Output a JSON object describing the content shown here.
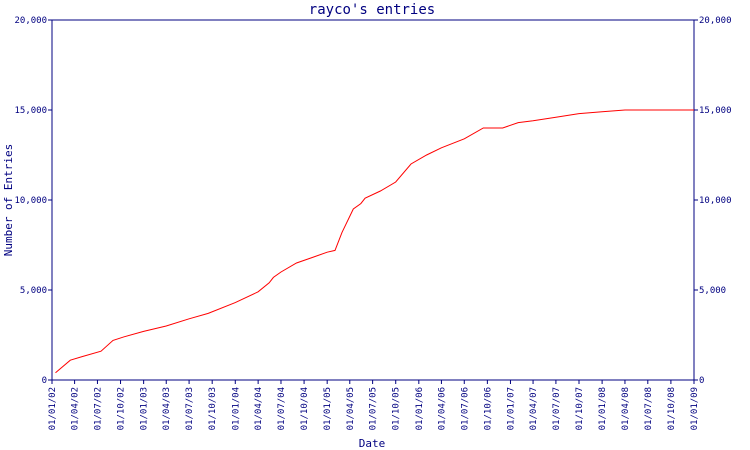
{
  "chart_data": {
    "type": "line",
    "title": "rayco's entries",
    "xlabel": "Date",
    "ylabel": "Number of Entries",
    "ylim": [
      0,
      20000
    ],
    "yticks": [
      {
        "value": 0,
        "label": "0"
      },
      {
        "value": 5000,
        "label": "5,000"
      },
      {
        "value": 10000,
        "label": "10,000"
      },
      {
        "value": 15000,
        "label": "15,000"
      },
      {
        "value": 20000,
        "label": "20,000"
      }
    ],
    "xlim": [
      "2002-01-01",
      "2009-01-01"
    ],
    "xticks": [
      {
        "date": "2002-01-01",
        "label": "01/01/02"
      },
      {
        "date": "2002-04-01",
        "label": "01/04/02"
      },
      {
        "date": "2002-07-01",
        "label": "01/07/02"
      },
      {
        "date": "2002-10-01",
        "label": "01/10/02"
      },
      {
        "date": "2003-01-01",
        "label": "01/01/03"
      },
      {
        "date": "2003-04-01",
        "label": "01/04/03"
      },
      {
        "date": "2003-07-01",
        "label": "01/07/03"
      },
      {
        "date": "2003-10-01",
        "label": "01/10/03"
      },
      {
        "date": "2004-01-01",
        "label": "01/01/04"
      },
      {
        "date": "2004-04-01",
        "label": "01/04/04"
      },
      {
        "date": "2004-07-01",
        "label": "01/07/04"
      },
      {
        "date": "2004-10-01",
        "label": "01/10/04"
      },
      {
        "date": "2005-01-01",
        "label": "01/01/05"
      },
      {
        "date": "2005-04-01",
        "label": "01/04/05"
      },
      {
        "date": "2005-07-01",
        "label": "01/07/05"
      },
      {
        "date": "2005-10-01",
        "label": "01/10/05"
      },
      {
        "date": "2006-01-01",
        "label": "01/01/06"
      },
      {
        "date": "2006-04-01",
        "label": "01/04/06"
      },
      {
        "date": "2006-07-01",
        "label": "01/07/06"
      },
      {
        "date": "2006-10-01",
        "label": "01/10/06"
      },
      {
        "date": "2007-01-01",
        "label": "01/01/07"
      },
      {
        "date": "2007-04-01",
        "label": "01/04/07"
      },
      {
        "date": "2007-07-01",
        "label": "01/07/07"
      },
      {
        "date": "2007-10-01",
        "label": "01/10/07"
      },
      {
        "date": "2008-01-01",
        "label": "01/01/08"
      },
      {
        "date": "2008-04-01",
        "label": "01/04/08"
      },
      {
        "date": "2008-07-01",
        "label": "01/07/08"
      },
      {
        "date": "2008-10-01",
        "label": "01/10/08"
      },
      {
        "date": "2009-01-01",
        "label": "01/01/09"
      }
    ],
    "grid": false,
    "legend": "none",
    "colors": {
      "line": "#ff0000",
      "axes": "#000080",
      "background": "#ffffff"
    },
    "series": [
      {
        "points": [
          {
            "x": "2002-01-15",
            "y": 400
          },
          {
            "x": "2002-03-15",
            "y": 1100
          },
          {
            "x": "2002-05-01",
            "y": 1300
          },
          {
            "x": "2002-07-15",
            "y": 1600
          },
          {
            "x": "2002-09-01",
            "y": 2200
          },
          {
            "x": "2002-10-15",
            "y": 2400
          },
          {
            "x": "2003-01-01",
            "y": 2700
          },
          {
            "x": "2003-04-01",
            "y": 3000
          },
          {
            "x": "2003-07-01",
            "y": 3400
          },
          {
            "x": "2003-09-15",
            "y": 3700
          },
          {
            "x": "2004-01-01",
            "y": 4300
          },
          {
            "x": "2004-04-01",
            "y": 4900
          },
          {
            "x": "2004-05-15",
            "y": 5400
          },
          {
            "x": "2004-06-01",
            "y": 5700
          },
          {
            "x": "2004-07-01",
            "y": 6000
          },
          {
            "x": "2004-09-01",
            "y": 6500
          },
          {
            "x": "2004-11-01",
            "y": 6800
          },
          {
            "x": "2005-01-01",
            "y": 7100
          },
          {
            "x": "2005-02-01",
            "y": 7200
          },
          {
            "x": "2005-03-01",
            "y": 8200
          },
          {
            "x": "2005-04-15",
            "y": 9500
          },
          {
            "x": "2005-05-15",
            "y": 9800
          },
          {
            "x": "2005-06-01",
            "y": 10100
          },
          {
            "x": "2005-08-01",
            "y": 10500
          },
          {
            "x": "2005-10-01",
            "y": 11000
          },
          {
            "x": "2005-12-01",
            "y": 12000
          },
          {
            "x": "2006-02-01",
            "y": 12500
          },
          {
            "x": "2006-04-01",
            "y": 12900
          },
          {
            "x": "2006-07-01",
            "y": 13400
          },
          {
            "x": "2006-09-15",
            "y": 14000
          },
          {
            "x": "2006-12-01",
            "y": 14000
          },
          {
            "x": "2007-02-01",
            "y": 14300
          },
          {
            "x": "2007-04-01",
            "y": 14400
          },
          {
            "x": "2007-07-01",
            "y": 14600
          },
          {
            "x": "2007-10-01",
            "y": 14800
          },
          {
            "x": "2008-01-01",
            "y": 14900
          },
          {
            "x": "2008-04-01",
            "y": 15000
          },
          {
            "x": "2009-01-01",
            "y": 15000
          }
        ]
      }
    ]
  }
}
